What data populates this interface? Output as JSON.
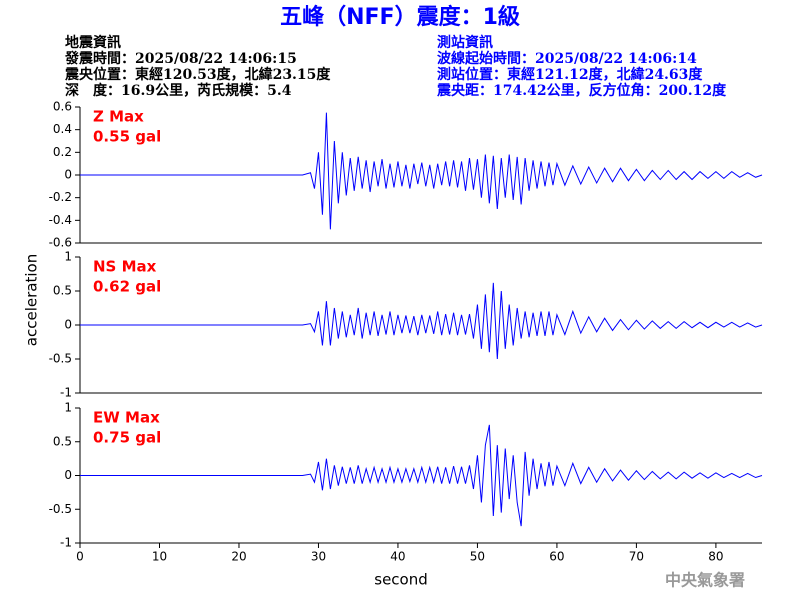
{
  "header": {
    "title": "五峰（NFF）震度：1級",
    "left_info": [
      "地震資訊",
      "發震時間：2025/08/22 14:06:15",
      "震央位置：東經120.53度，北緯23.15度",
      "深　度：16.9公里，芮氏規模：5.4"
    ],
    "right_info": [
      "測站資訊",
      "波線起始時間：2025/08/22 14:06:14",
      "測站位置：東經121.12度，北緯24.63度",
      "震央距：174.42公里，反方位角：200.12度"
    ],
    "footer": "中央氣象署"
  },
  "chart_data": [
    {
      "type": "line",
      "annotations": [
        "Z Max",
        "0.55 gal"
      ],
      "color": "#0000ff",
      "xlim": [
        0,
        85.8
      ],
      "ylim": [
        -0.6,
        0.6
      ],
      "yticks": [
        -0.6,
        -0.4,
        -0.2,
        0,
        0.2,
        0.4,
        0.6
      ],
      "x": [
        0,
        10,
        20,
        28,
        29,
        29.5,
        30,
        30.5,
        31,
        31.5,
        32,
        32.5,
        33,
        33.5,
        34,
        34.5,
        35,
        35.5,
        36,
        36.5,
        37,
        37.5,
        38,
        38.5,
        39,
        39.5,
        40,
        40.5,
        41,
        41.5,
        42,
        42.5,
        43,
        43.5,
        44,
        44.5,
        45,
        45.5,
        46,
        46.5,
        47,
        47.5,
        48,
        48.5,
        49,
        49.5,
        50,
        50.5,
        51,
        51.5,
        52,
        52.5,
        53,
        53.5,
        54,
        54.5,
        55,
        55.5,
        56,
        56.5,
        57,
        57.5,
        58,
        58.5,
        59,
        59.5,
        60,
        61,
        62,
        63,
        64,
        65,
        66,
        67,
        68,
        69,
        70,
        71,
        72,
        73,
        74,
        75,
        76,
        77,
        78,
        79,
        80,
        81,
        82,
        83,
        84,
        85,
        85.8
      ],
      "values": [
        0,
        0,
        0,
        0,
        0.02,
        -0.12,
        0.2,
        -0.35,
        0.55,
        -0.48,
        0.3,
        -0.25,
        0.2,
        -0.18,
        0.15,
        -0.14,
        0.16,
        -0.12,
        0.13,
        -0.15,
        0.12,
        -0.1,
        0.14,
        -0.12,
        0.1,
        -0.11,
        0.12,
        -0.1,
        0.09,
        -0.12,
        0.1,
        -0.08,
        0.11,
        -0.1,
        0.09,
        -0.12,
        0.1,
        -0.09,
        0.12,
        -0.1,
        0.13,
        -0.11,
        0.12,
        -0.14,
        0.15,
        -0.13,
        0.14,
        -0.2,
        0.18,
        -0.25,
        0.17,
        -0.3,
        0.15,
        -0.2,
        0.18,
        -0.22,
        0.16,
        -0.26,
        0.15,
        -0.14,
        0.13,
        -0.12,
        0.12,
        -0.1,
        0.11,
        -0.09,
        0.1,
        -0.09,
        0.08,
        -0.08,
        0.07,
        -0.07,
        0.06,
        -0.06,
        0.06,
        -0.05,
        0.05,
        -0.05,
        0.04,
        -0.04,
        0.04,
        -0.04,
        0.03,
        -0.04,
        0.03,
        -0.03,
        0.03,
        -0.03,
        0.03,
        -0.02,
        0.02,
        -0.02,
        0
      ]
    },
    {
      "type": "line",
      "annotations": [
        "NS Max",
        "0.62 gal"
      ],
      "color": "#0000ff",
      "ylabel": "acceleration",
      "xlim": [
        0,
        85.8
      ],
      "ylim": [
        -1,
        1
      ],
      "yticks": [
        -1,
        -0.5,
        0,
        0.5,
        1
      ],
      "x": [
        0,
        10,
        20,
        28,
        29,
        29.5,
        30,
        30.5,
        31,
        31.5,
        32,
        32.5,
        33,
        33.5,
        34,
        34.5,
        35,
        35.5,
        36,
        36.5,
        37,
        37.5,
        38,
        38.5,
        39,
        39.5,
        40,
        40.5,
        41,
        41.5,
        42,
        42.5,
        43,
        43.5,
        44,
        44.5,
        45,
        45.5,
        46,
        46.5,
        47,
        47.5,
        48,
        48.5,
        49,
        49.5,
        50,
        50.5,
        51,
        51.5,
        52,
        52.5,
        53,
        53.5,
        54,
        54.5,
        55,
        55.5,
        56,
        56.5,
        57,
        57.5,
        58,
        58.5,
        59,
        59.5,
        60,
        61,
        62,
        63,
        64,
        65,
        66,
        67,
        68,
        69,
        70,
        71,
        72,
        73,
        74,
        75,
        76,
        77,
        78,
        79,
        80,
        81,
        82,
        83,
        84,
        85,
        85.8
      ],
      "values": [
        0,
        0,
        0,
        0,
        0.02,
        -0.1,
        0.2,
        -0.3,
        0.35,
        -0.3,
        0.25,
        -0.2,
        0.2,
        -0.18,
        0.15,
        -0.15,
        0.25,
        -0.2,
        0.18,
        -0.15,
        0.2,
        -0.16,
        0.15,
        -0.14,
        0.2,
        -0.15,
        0.15,
        -0.12,
        0.14,
        -0.12,
        0.13,
        -0.15,
        0.15,
        -0.12,
        0.14,
        -0.13,
        0.2,
        -0.15,
        0.16,
        -0.14,
        0.18,
        -0.15,
        0.15,
        -0.14,
        0.16,
        -0.2,
        0.3,
        -0.35,
        0.45,
        -0.4,
        0.62,
        -0.5,
        0.5,
        -0.35,
        0.3,
        -0.3,
        0.25,
        -0.2,
        0.2,
        -0.18,
        0.18,
        -0.16,
        0.2,
        -0.16,
        0.2,
        -0.15,
        0.15,
        -0.14,
        0.2,
        -0.12,
        0.12,
        -0.1,
        0.1,
        -0.08,
        0.08,
        -0.07,
        0.07,
        -0.06,
        0.06,
        -0.05,
        0.05,
        -0.05,
        0.05,
        -0.04,
        0.04,
        -0.04,
        0.04,
        -0.03,
        0.04,
        -0.03,
        0.03,
        -0.03,
        0
      ]
    },
    {
      "type": "line",
      "annotations": [
        "EW Max",
        "0.75 gal"
      ],
      "color": "#0000ff",
      "xlabel": "second",
      "xlim": [
        0,
        85.8
      ],
      "xticks": [
        0,
        10,
        20,
        30,
        40,
        50,
        60,
        70,
        80
      ],
      "ylim": [
        -1,
        1
      ],
      "yticks": [
        -1,
        -0.5,
        0,
        0.5,
        1
      ],
      "x": [
        0,
        10,
        20,
        28,
        29,
        29.5,
        30,
        30.5,
        31,
        31.5,
        32,
        32.5,
        33,
        33.5,
        34,
        34.5,
        35,
        35.5,
        36,
        36.5,
        37,
        37.5,
        38,
        38.5,
        39,
        39.5,
        40,
        40.5,
        41,
        41.5,
        42,
        42.5,
        43,
        43.5,
        44,
        44.5,
        45,
        45.5,
        46,
        46.5,
        47,
        47.5,
        48,
        48.5,
        49,
        49.5,
        50,
        50.5,
        51,
        51.5,
        52,
        52.5,
        53,
        53.5,
        54,
        54.5,
        55,
        55.5,
        56,
        56.5,
        57,
        57.5,
        58,
        58.5,
        59,
        59.5,
        60,
        61,
        62,
        63,
        64,
        65,
        66,
        67,
        68,
        69,
        70,
        71,
        72,
        73,
        74,
        75,
        76,
        77,
        78,
        79,
        80,
        81,
        82,
        83,
        84,
        85,
        85.8
      ],
      "values": [
        0,
        0,
        0,
        0,
        0.02,
        -0.1,
        0.2,
        -0.22,
        0.25,
        -0.2,
        0.15,
        -0.15,
        0.13,
        -0.12,
        0.12,
        -0.12,
        0.15,
        -0.12,
        0.1,
        -0.1,
        0.12,
        -0.1,
        0.1,
        -0.1,
        0.12,
        -0.1,
        0.1,
        -0.1,
        0.1,
        -0.09,
        0.1,
        -0.1,
        0.12,
        -0.1,
        0.12,
        -0.1,
        0.13,
        -0.12,
        0.12,
        -0.12,
        0.14,
        -0.12,
        0.13,
        -0.12,
        0.15,
        -0.2,
        0.3,
        -0.4,
        0.45,
        0.75,
        -0.6,
        0.45,
        -0.55,
        0.4,
        -0.35,
        0.3,
        -0.4,
        -0.75,
        0.35,
        -0.3,
        0.25,
        -0.2,
        0.18,
        -0.16,
        0.2,
        -0.15,
        0.14,
        -0.15,
        0.18,
        -0.12,
        0.12,
        -0.1,
        0.1,
        -0.08,
        0.08,
        -0.07,
        0.07,
        -0.06,
        0.06,
        -0.05,
        0.05,
        -0.05,
        0.05,
        -0.04,
        0.04,
        -0.04,
        0.04,
        -0.03,
        0.03,
        -0.03,
        0.03,
        -0.03,
        0
      ]
    }
  ]
}
